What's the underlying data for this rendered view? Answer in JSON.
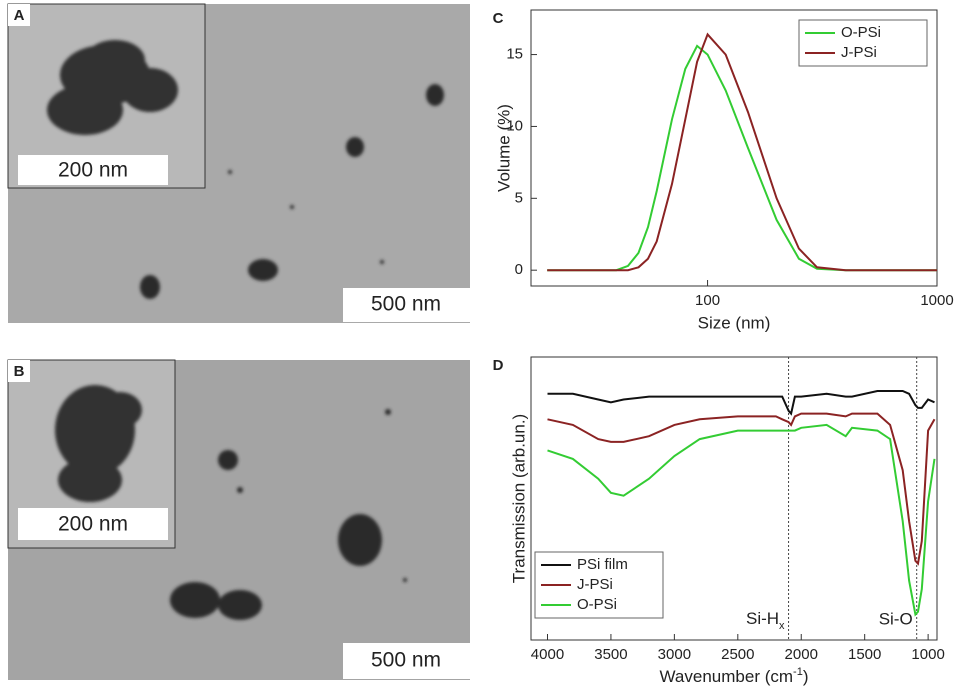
{
  "panels": [
    {
      "label": "A",
      "inset_scale": "200 nm",
      "scale": "500 nm"
    },
    {
      "label": "B",
      "inset_scale": "200 nm",
      "scale": "500 nm"
    }
  ],
  "chart_data": [
    {
      "type": "line",
      "label": "C",
      "xlabel": "Size (nm)",
      "ylabel": "Volume (%)",
      "xlog": true,
      "xlim": [
        17,
        1000
      ],
      "xticks": [
        100,
        1000
      ],
      "ylim": [
        -1.1,
        18.1
      ],
      "yticks": [
        0,
        5,
        10,
        15
      ],
      "legend": "upper right",
      "x": [
        20,
        40,
        45,
        50,
        55,
        60,
        70,
        80,
        90,
        100,
        120,
        150,
        200,
        250,
        300,
        400,
        1000
      ],
      "series": [
        {
          "name": "O-PSi",
          "color": "#33cc33",
          "values": [
            0,
            0,
            0.3,
            1.2,
            3,
            5.5,
            10.5,
            14,
            15.6,
            15,
            12.5,
            8.5,
            3.5,
            0.8,
            0.1,
            0,
            0
          ]
        },
        {
          "name": "J-PSi",
          "color": "#8b2323",
          "values": [
            0,
            0,
            0,
            0.2,
            0.8,
            2,
            6,
            10.5,
            14.5,
            16.4,
            15,
            11,
            5,
            1.5,
            0.2,
            0,
            0
          ]
        }
      ]
    },
    {
      "type": "line",
      "label": "D",
      "xlabel": {
        "text": "Wavenumber (cm",
        "sup": "-1",
        "tail": ")"
      },
      "ylabel": "Transmission (arb.un.)",
      "xlim": [
        4130,
        930
      ],
      "xticks": [
        4000,
        3500,
        3000,
        2500,
        2000,
        1500,
        1000
      ],
      "ylim": [
        0,
        1
      ],
      "legend": "lower left",
      "annotations": [
        {
          "x": 2100,
          "text": "Si-H",
          "sub": "x"
        },
        {
          "x": 1090,
          "text": "Si-O"
        }
      ],
      "x": [
        4000,
        3800,
        3600,
        3500,
        3400,
        3200,
        3000,
        2800,
        2500,
        2200,
        2150,
        2100,
        2080,
        2050,
        2000,
        1800,
        1650,
        1600,
        1400,
        1300,
        1200,
        1150,
        1100,
        1080,
        1050,
        1000,
        950
      ],
      "series": [
        {
          "name": "PSi film",
          "color": "#111111",
          "values": [
            0.87,
            0.87,
            0.85,
            0.84,
            0.85,
            0.86,
            0.86,
            0.86,
            0.86,
            0.86,
            0.86,
            0.81,
            0.8,
            0.86,
            0.86,
            0.87,
            0.86,
            0.86,
            0.88,
            0.88,
            0.88,
            0.87,
            0.83,
            0.82,
            0.82,
            0.85,
            0.84
          ]
        },
        {
          "name": "J-PSi",
          "color": "#8b2323",
          "values": [
            0.78,
            0.76,
            0.71,
            0.7,
            0.7,
            0.72,
            0.76,
            0.78,
            0.79,
            0.79,
            0.78,
            0.77,
            0.76,
            0.79,
            0.8,
            0.8,
            0.79,
            0.8,
            0.8,
            0.76,
            0.6,
            0.42,
            0.28,
            0.27,
            0.35,
            0.74,
            0.78
          ]
        },
        {
          "name": "O-PSi",
          "color": "#33cc33",
          "values": [
            0.67,
            0.64,
            0.57,
            0.52,
            0.51,
            0.57,
            0.65,
            0.71,
            0.74,
            0.74,
            0.74,
            0.74,
            0.74,
            0.74,
            0.75,
            0.76,
            0.72,
            0.75,
            0.74,
            0.71,
            0.42,
            0.21,
            0.09,
            0.1,
            0.18,
            0.49,
            0.64
          ]
        }
      ]
    }
  ]
}
